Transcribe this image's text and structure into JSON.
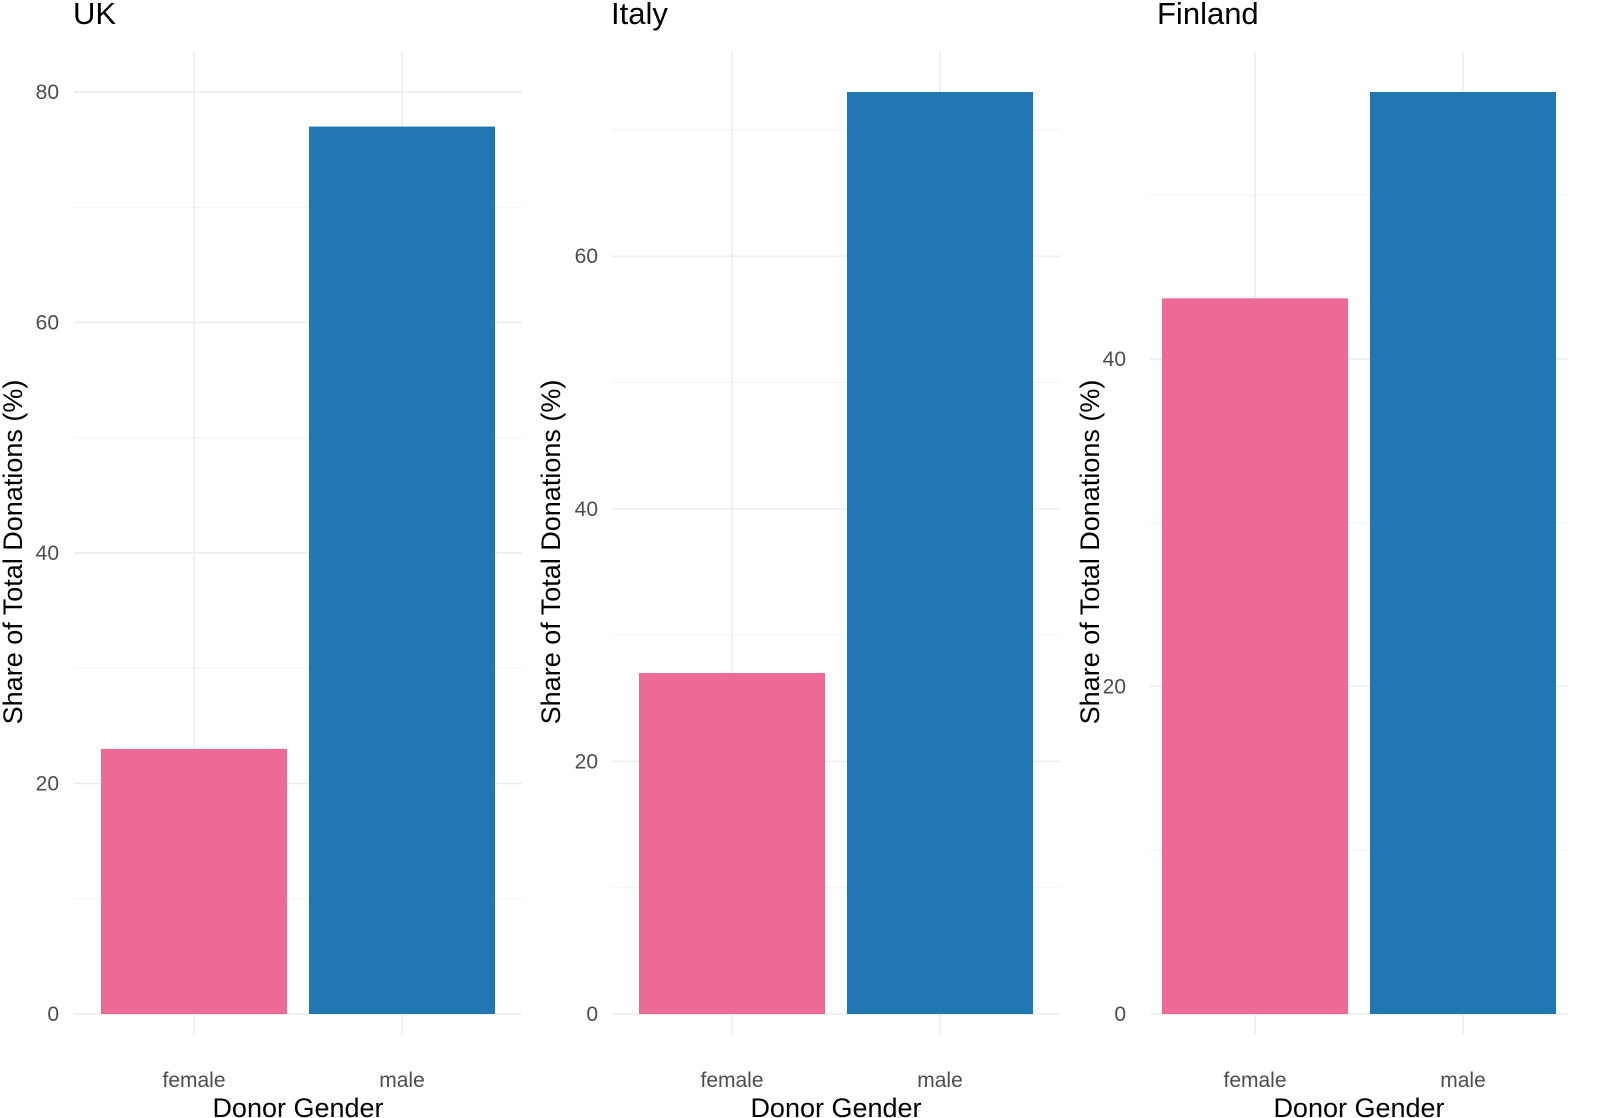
{
  "chart_data": [
    {
      "type": "bar",
      "title": "UK",
      "xlabel": "Donor Gender",
      "ylabel": "Share of Total Donations (%)",
      "categories": [
        "female",
        "male"
      ],
      "values": [
        23,
        77
      ],
      "colors": [
        "#ee6a96",
        "#2077b4"
      ],
      "ylim": [
        0,
        80
      ],
      "yticks": [
        0,
        20,
        40,
        60,
        80
      ],
      "grid": true
    },
    {
      "type": "bar",
      "title": "Italy",
      "xlabel": "Donor Gender",
      "ylabel": "Share of Total Donations (%)",
      "categories": [
        "female",
        "male"
      ],
      "values": [
        27,
        73
      ],
      "colors": [
        "#ee6a96",
        "#2077b4"
      ],
      "ylim": [
        0,
        73
      ],
      "yticks": [
        0,
        20,
        40,
        60
      ],
      "grid": true
    },
    {
      "type": "bar",
      "title": "Finland",
      "xlabel": "Donor Gender",
      "ylabel": "Share of Total Donations (%)",
      "categories": [
        "female",
        "male"
      ],
      "values": [
        43.7,
        56.3
      ],
      "colors": [
        "#ee6a96",
        "#2077b4"
      ],
      "ylim": [
        0,
        56.3
      ],
      "yticks": [
        0,
        20,
        40
      ],
      "grid": true
    }
  ]
}
